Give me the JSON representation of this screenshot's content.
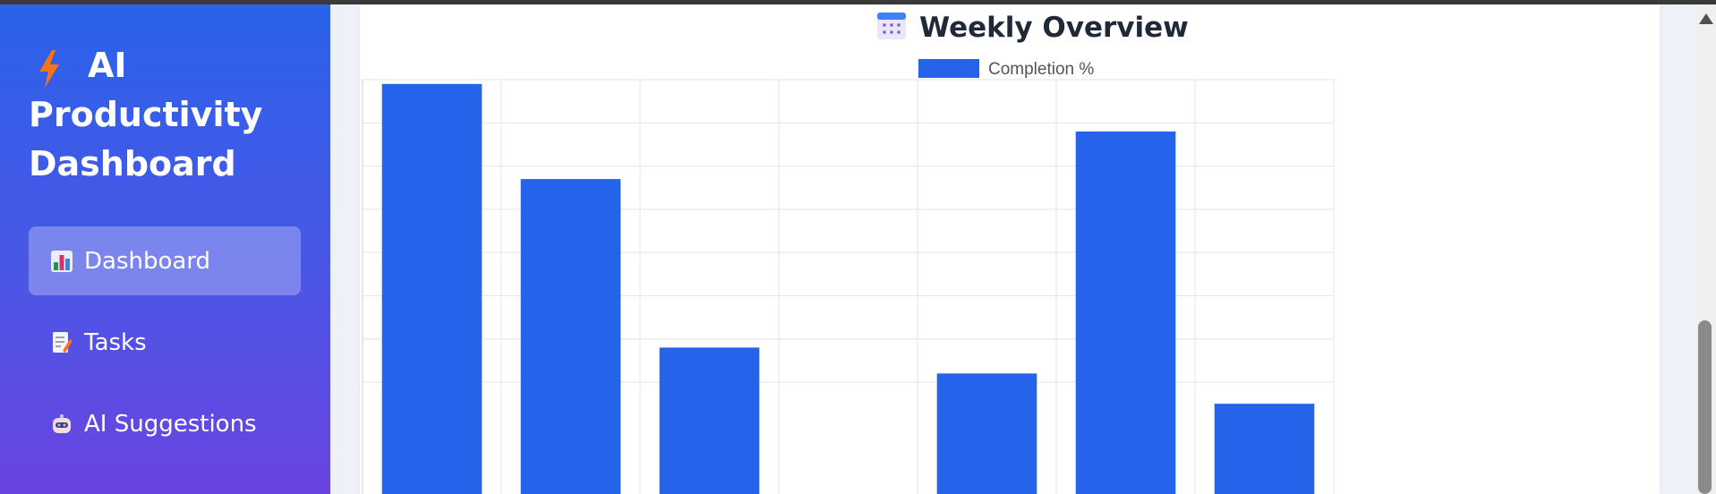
{
  "sidebar": {
    "brand_title": "AI Productivity Dashboard",
    "brand_icon": "lightning-icon",
    "items": [
      {
        "label": "Dashboard",
        "icon": "bar-chart-icon",
        "active": true
      },
      {
        "label": "Tasks",
        "icon": "memo-icon",
        "active": false
      },
      {
        "label": "AI Suggestions",
        "icon": "robot-icon",
        "active": false
      }
    ]
  },
  "colors": {
    "sidebar_top": "#2b62ea",
    "sidebar_bottom": "#6a44e0",
    "bar": "#2563eb",
    "accent_icon": "#f97316"
  },
  "chart_data": {
    "type": "bar",
    "title": "Weekly Overview",
    "title_icon": "calendar-icon",
    "series": [
      {
        "name": "Completion %",
        "values": [
          99,
          77,
          38,
          null,
          32,
          88,
          25
        ]
      }
    ],
    "categories_count": 7,
    "ylim": [
      30,
      100
    ],
    "yticks": [
      100,
      90,
      80,
      70,
      60,
      50,
      40,
      30
    ],
    "grid": true,
    "legend": "top-center"
  }
}
